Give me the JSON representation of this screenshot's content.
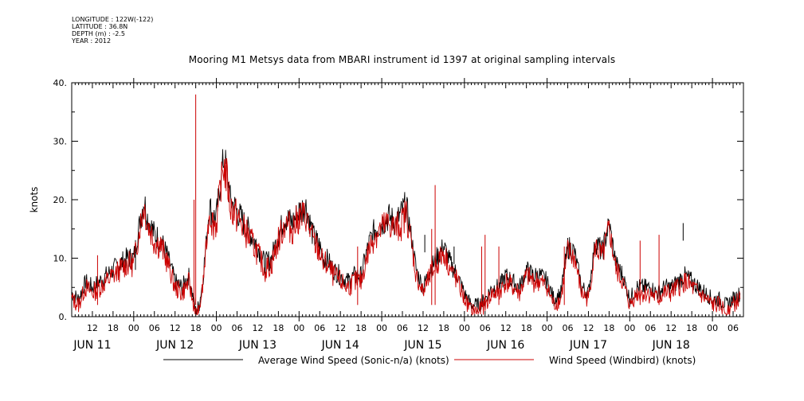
{
  "header": {
    "longitude": "LONGITUDE : 122W(-122)",
    "latitude": "LATITUDE : 36.8N",
    "depth": "DEPTH (m) : -2.5",
    "year": "YEAR : 2012"
  },
  "chart_data": {
    "type": "line",
    "title": "Mooring M1 Metsys data from MBARI instrument id 1397 at original sampling intervals",
    "ylabel": "knots",
    "xlabel": "",
    "ylim": [
      0,
      40
    ],
    "yticks": [
      0,
      10,
      20,
      30,
      40
    ],
    "ytick_labels": [
      "0.",
      "10.",
      "20.",
      "30.",
      "40."
    ],
    "xlim_hours": [
      -18,
      177
    ],
    "hour_ticks": [
      {
        "h": -12,
        "label": "12"
      },
      {
        "h": -6,
        "label": "18"
      },
      {
        "h": 0,
        "label": "00"
      },
      {
        "h": 6,
        "label": "06"
      },
      {
        "h": 12,
        "label": "12"
      },
      {
        "h": 18,
        "label": "18"
      },
      {
        "h": 24,
        "label": "00"
      },
      {
        "h": 30,
        "label": "06"
      },
      {
        "h": 36,
        "label": "12"
      },
      {
        "h": 42,
        "label": "18"
      },
      {
        "h": 48,
        "label": "00"
      },
      {
        "h": 54,
        "label": "06"
      },
      {
        "h": 60,
        "label": "12"
      },
      {
        "h": 66,
        "label": "18"
      },
      {
        "h": 72,
        "label": "00"
      },
      {
        "h": 78,
        "label": "06"
      },
      {
        "h": 84,
        "label": "12"
      },
      {
        "h": 90,
        "label": "18"
      },
      {
        "h": 96,
        "label": "00"
      },
      {
        "h": 102,
        "label": "06"
      },
      {
        "h": 108,
        "label": "12"
      },
      {
        "h": 114,
        "label": "18"
      },
      {
        "h": 120,
        "label": "00"
      },
      {
        "h": 126,
        "label": "06"
      },
      {
        "h": 132,
        "label": "12"
      },
      {
        "h": 138,
        "label": "18"
      },
      {
        "h": 144,
        "label": "00"
      },
      {
        "h": 150,
        "label": "06"
      },
      {
        "h": 156,
        "label": "12"
      },
      {
        "h": 162,
        "label": "18"
      },
      {
        "h": 168,
        "label": "00"
      },
      {
        "h": 174,
        "label": "06"
      }
    ],
    "day_labels": [
      {
        "h": -12,
        "label": "JUN 11"
      },
      {
        "h": 12,
        "label": "JUN 12"
      },
      {
        "h": 36,
        "label": "JUN 13"
      },
      {
        "h": 60,
        "label": "JUN 14"
      },
      {
        "h": 84,
        "label": "JUN 15"
      },
      {
        "h": 108,
        "label": "JUN 16"
      },
      {
        "h": 132,
        "label": "JUN 17"
      },
      {
        "h": 156,
        "label": "JUN 18"
      }
    ],
    "series": [
      {
        "name": "Average Wind Speed (Sonic-n/a) (knots)",
        "color": "#000000",
        "x": [
          -18,
          -16,
          -14,
          -12,
          -10,
          -8,
          -6,
          -4,
          -2,
          0,
          2,
          3,
          4,
          6,
          8,
          10,
          12,
          14,
          16,
          17,
          18,
          19,
          20,
          22,
          23,
          24,
          26,
          27,
          28,
          30,
          32,
          34,
          36,
          38,
          40,
          42,
          44,
          46,
          48,
          50,
          52,
          54,
          55,
          56,
          58,
          60,
          62,
          64,
          66,
          68,
          70,
          72,
          74,
          76,
          78,
          79,
          80,
          82,
          84,
          86,
          88,
          90,
          92,
          94,
          96,
          98,
          100,
          102,
          104,
          106,
          108,
          110,
          112,
          114,
          116,
          118,
          120,
          122,
          124,
          126,
          128,
          130,
          132,
          134,
          136,
          138,
          140,
          142,
          144,
          146,
          148,
          150,
          152,
          154,
          156,
          158,
          160,
          162,
          164,
          166,
          168,
          170,
          172,
          174,
          176
        ],
        "y": [
          4,
          3,
          6,
          5,
          6,
          7,
          8,
          9,
          10,
          10,
          17,
          20,
          17,
          14,
          13,
          10,
          6,
          5,
          7,
          4,
          1,
          2,
          6,
          19,
          17,
          17,
          27,
          25,
          20,
          18,
          16,
          14,
          12,
          9,
          10,
          14,
          17,
          16,
          18,
          19,
          14,
          12,
          10,
          10,
          8,
          7,
          6,
          7,
          7,
          12,
          15,
          16,
          17,
          16,
          18,
          19,
          16,
          8,
          5,
          8,
          10,
          12,
          9,
          7,
          4,
          2,
          2,
          3,
          5,
          5,
          7,
          6,
          5,
          8,
          7,
          7,
          6,
          3,
          4,
          12,
          11,
          5,
          4,
          13,
          11,
          16,
          9,
          7,
          3,
          5,
          5,
          5,
          4,
          5,
          5,
          6,
          7,
          6,
          5,
          4,
          3,
          3,
          2,
          3,
          4
        ],
        "peaks": [
          {
            "x": 0.5,
            "y": 11
          },
          {
            "x": 93,
            "y": 12
          },
          {
            "x": 84.5,
            "y": 14
          },
          {
            "x": 159.5,
            "y": 16
          }
        ]
      },
      {
        "name": "Wind Speed (Windbird) (knots)",
        "color": "#cc0000",
        "x": [
          -18,
          -16,
          -14,
          -12,
          -10,
          -8,
          -6,
          -4,
          -2,
          0,
          2,
          3,
          4,
          6,
          8,
          10,
          12,
          14,
          16,
          17,
          18,
          19,
          20,
          22,
          23,
          24,
          26,
          27,
          28,
          30,
          32,
          34,
          36,
          38,
          40,
          42,
          44,
          46,
          48,
          50,
          52,
          54,
          55,
          56,
          58,
          60,
          62,
          64,
          66,
          68,
          70,
          72,
          74,
          76,
          78,
          79,
          80,
          82,
          84,
          86,
          88,
          90,
          92,
          94,
          96,
          98,
          100,
          102,
          104,
          106,
          108,
          110,
          112,
          114,
          116,
          118,
          120,
          122,
          124,
          126,
          128,
          130,
          132,
          134,
          136,
          138,
          140,
          142,
          144,
          146,
          148,
          150,
          152,
          154,
          156,
          158,
          160,
          162,
          164,
          166,
          168,
          170,
          172,
          174,
          176
        ],
        "y": [
          3,
          2,
          5,
          4,
          5,
          6,
          7,
          8,
          9,
          9,
          16,
          19,
          16,
          13,
          12,
          9,
          5,
          4,
          6,
          3,
          0.5,
          1,
          5,
          18,
          16,
          16,
          26,
          24,
          19,
          17,
          15,
          13,
          11,
          8,
          9,
          13,
          16,
          15,
          17,
          17,
          13,
          11,
          9,
          9,
          7,
          6,
          5,
          6,
          6,
          11,
          14,
          15,
          16,
          15,
          16,
          18,
          15,
          7,
          4,
          7,
          9,
          11,
          8,
          6,
          3,
          1,
          1,
          2,
          4,
          4,
          6,
          5,
          4,
          7,
          6,
          6,
          5,
          2,
          3,
          11,
          10,
          4,
          3,
          12,
          10,
          15,
          8,
          6,
          2,
          4,
          4,
          4,
          3,
          4,
          4,
          5,
          6,
          5,
          4,
          3,
          2,
          2,
          1,
          2,
          3
        ],
        "spikes": [
          {
            "x": 18.0,
            "y": 38
          },
          {
            "x": 17.5,
            "y": 20
          },
          {
            "x": 87.5,
            "y": 22.5
          },
          {
            "x": 86.5,
            "y": 15
          },
          {
            "x": 102.0,
            "y": 14
          },
          {
            "x": 101.0,
            "y": 12
          },
          {
            "x": -10.5,
            "y": 10.5
          },
          {
            "x": 65.0,
            "y": 12
          },
          {
            "x": 125.0,
            "y": 12
          },
          {
            "x": 152.5,
            "y": 14
          },
          {
            "x": 106.0,
            "y": 12
          },
          {
            "x": 147.0,
            "y": 13
          }
        ]
      }
    ],
    "legend": "bottom",
    "grid": false
  }
}
